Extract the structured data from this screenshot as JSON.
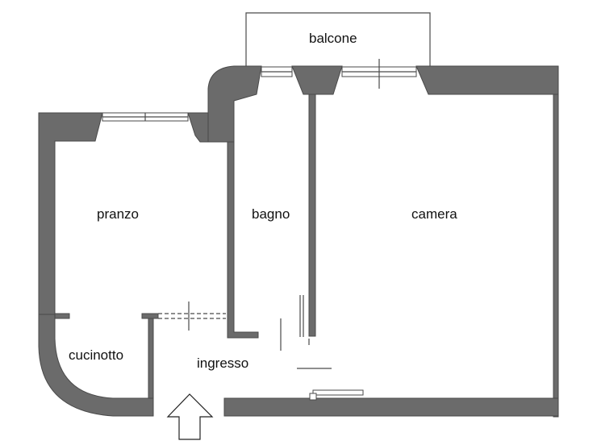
{
  "rooms": {
    "balcone": "balcone",
    "pranzo": "pranzo",
    "bagno": "bagno",
    "camera": "camera",
    "cucinotto": "cucinotto",
    "ingresso": "ingresso"
  },
  "colors": {
    "wall": "#6b6b6b",
    "line": "#4a4a4a",
    "background": "#ffffff"
  },
  "icons": {
    "entrance": "up-arrow-icon"
  }
}
